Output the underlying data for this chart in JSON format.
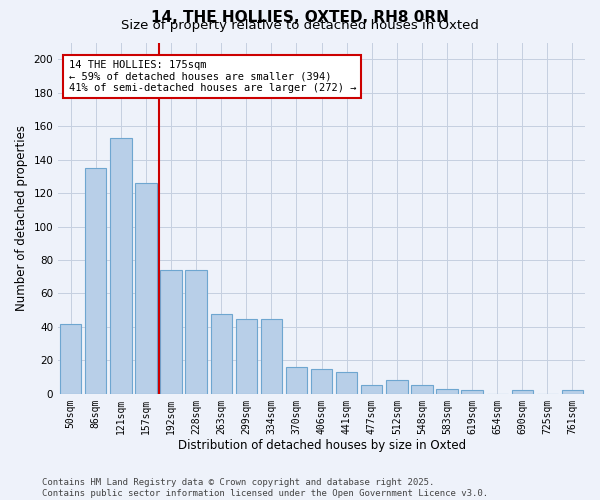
{
  "title_line1": "14, THE HOLLIES, OXTED, RH8 0RN",
  "title_line2": "Size of property relative to detached houses in Oxted",
  "xlabel": "Distribution of detached houses by size in Oxted",
  "ylabel": "Number of detached properties",
  "categories": [
    "50sqm",
    "86sqm",
    "121sqm",
    "157sqm",
    "192sqm",
    "228sqm",
    "263sqm",
    "299sqm",
    "334sqm",
    "370sqm",
    "406sqm",
    "441sqm",
    "477sqm",
    "512sqm",
    "548sqm",
    "583sqm",
    "619sqm",
    "654sqm",
    "690sqm",
    "725sqm",
    "761sqm"
  ],
  "values": [
    42,
    135,
    153,
    126,
    74,
    74,
    48,
    45,
    45,
    16,
    15,
    13,
    5,
    8,
    5,
    3,
    2,
    0,
    2,
    0,
    2
  ],
  "bar_color": "#b8cfe8",
  "bar_edge_color": "#6ea6d0",
  "vline_x_index": 3,
  "vline_color": "#cc0000",
  "annotation_text": "14 THE HOLLIES: 175sqm\n← 59% of detached houses are smaller (394)\n41% of semi-detached houses are larger (272) →",
  "annotation_box_facecolor": "#ffffff",
  "annotation_box_edgecolor": "#cc0000",
  "ylim": [
    0,
    210
  ],
  "yticks": [
    0,
    20,
    40,
    60,
    80,
    100,
    120,
    140,
    160,
    180,
    200
  ],
  "background_color": "#eef2fa",
  "grid_color": "#c5cfe0",
  "title_fontsize": 11,
  "subtitle_fontsize": 9.5,
  "tick_fontsize": 7,
  "label_fontsize": 8.5,
  "annotation_fontsize": 7.5,
  "footer_fontsize": 6.5,
  "footer": "Contains HM Land Registry data © Crown copyright and database right 2025.\nContains public sector information licensed under the Open Government Licence v3.0."
}
